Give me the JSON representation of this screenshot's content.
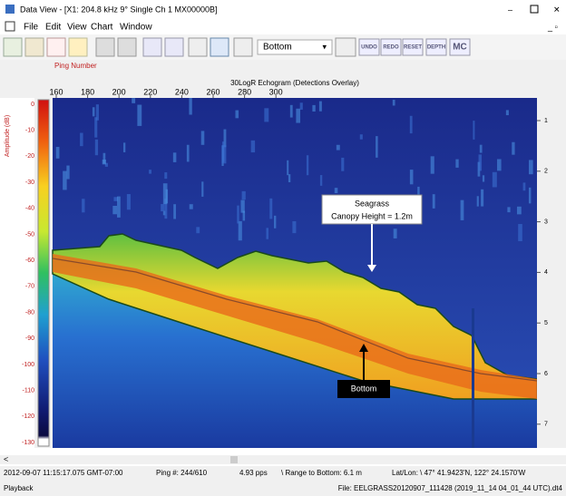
{
  "window": {
    "title": "Data View - [X1: 204.8 kHz 9° Single Ch 1 MX00000B]"
  },
  "menu": [
    "File",
    "Edit",
    "View",
    "Chart",
    "Window"
  ],
  "toolbar": {
    "dropdown": "Bottom",
    "buttons": [
      "UNDO",
      "REDO",
      "RESET",
      "DEPTH",
      "MC"
    ]
  },
  "echogram": {
    "ping_label": "Ping Number",
    "title": "30LogR Echogram (Detections Overlay)",
    "x_ticks": [
      "160",
      "180",
      "200",
      "220",
      "240",
      "260",
      "280",
      "300"
    ],
    "colorbar_label": "Amplitude (dB)",
    "colorbar_ticks": [
      "0",
      "-10",
      "-20",
      "-30",
      "-40",
      "-50",
      "-60",
      "-70",
      "-80",
      "-90",
      "-100",
      "-110",
      "-120",
      "-130"
    ],
    "depth_ticks": [
      "1",
      "2",
      "3",
      "4",
      "5",
      "6",
      "7"
    ],
    "annotations": {
      "seagrass_title": "Seagrass",
      "seagrass_text": "Canopy Height = 1.2m",
      "bottom": "Bottom"
    }
  },
  "status": {
    "time": "2012-09-07 11:15:17.075 GMT-07:00",
    "ping": "Ping #: 244/610",
    "rate": "4.93 pps",
    "range": "\\ Range to Bottom: 6.1 m",
    "latlon": "Lat/Lon: \\ 47° 41.9423'N, 122° 24.1570'W",
    "mode": "Playback",
    "file": "File:  EELGRASS20120907_111428 (2019_11_14 04_01_44 UTC).dt4"
  }
}
